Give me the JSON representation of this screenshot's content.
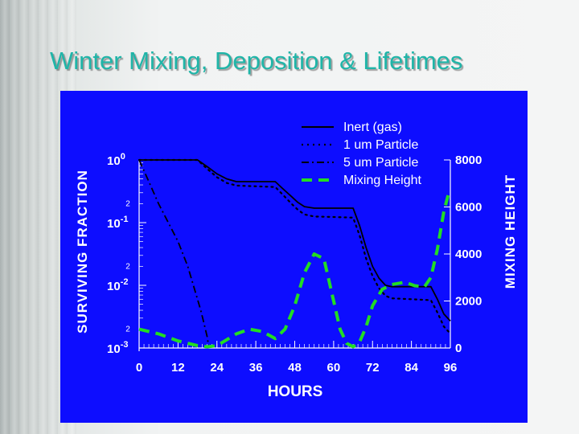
{
  "slide": {
    "title": "Winter Mixing, Deposition & Lifetimes"
  },
  "chart_data": {
    "type": "line",
    "xlabel": "HOURS",
    "ylabel_left": "SURVIVING FRACTION",
    "ylabel_right": "MIXING HEIGHT",
    "xlim": [
      0,
      96
    ],
    "xticks": [
      "0",
      "12",
      "24",
      "36",
      "48",
      "60",
      "72",
      "84",
      "96"
    ],
    "y_left": {
      "scale": "log",
      "lim": [
        0.001,
        1
      ],
      "decades": [
        {
          "base": "10",
          "exp": "0"
        },
        {
          "base": "10",
          "exp": "-1"
        },
        {
          "base": "10",
          "exp": "-2"
        },
        {
          "base": "10",
          "exp": "-3"
        }
      ],
      "minor_label": "2"
    },
    "y_right": {
      "lim": [
        0,
        8000
      ],
      "ticks": [
        "8000",
        "6000",
        "4000",
        "2000",
        "0"
      ]
    },
    "legend_position": "top-center",
    "colors": {
      "panel": "#0d0dff",
      "text": "#ffffff",
      "lines": "#000000",
      "mixing": "#22dd22"
    },
    "series": [
      {
        "name": "Inert (gas)",
        "axis": "left",
        "style": "solid",
        "x": [
          0,
          18,
          21,
          24,
          27,
          30,
          36,
          42,
          44,
          47,
          49,
          51,
          54,
          60,
          66,
          68,
          70,
          72,
          74,
          76,
          78,
          84,
          90,
          92,
          94,
          96
        ],
        "y": [
          1,
          1,
          0.78,
          0.6,
          0.5,
          0.45,
          0.45,
          0.45,
          0.36,
          0.26,
          0.21,
          0.18,
          0.17,
          0.17,
          0.17,
          0.09,
          0.04,
          0.02,
          0.013,
          0.01,
          0.0095,
          0.0095,
          0.0095,
          0.006,
          0.0035,
          0.0027
        ]
      },
      {
        "name": "1 um Particle",
        "axis": "left",
        "style": "dotted",
        "x": [
          0,
          18,
          21,
          24,
          27,
          30,
          36,
          42,
          44,
          47,
          49,
          51,
          54,
          60,
          66,
          68,
          70,
          72,
          74,
          76,
          78,
          84,
          90,
          92,
          94,
          96
        ],
        "y": [
          1,
          1,
          0.72,
          0.53,
          0.43,
          0.39,
          0.38,
          0.37,
          0.29,
          0.2,
          0.16,
          0.135,
          0.125,
          0.123,
          0.12,
          0.063,
          0.027,
          0.014,
          0.009,
          0.0068,
          0.0062,
          0.006,
          0.0058,
          0.0037,
          0.0022,
          0.0017
        ]
      },
      {
        "name": "5 um Particle",
        "axis": "left",
        "style": "dashdot",
        "x": [
          0,
          3,
          6,
          9,
          12,
          15,
          18,
          19,
          20,
          21,
          21.5
        ],
        "y": [
          1,
          0.45,
          0.2,
          0.1,
          0.05,
          0.02,
          0.006,
          0.004,
          0.0025,
          0.0015,
          0.001
        ]
      },
      {
        "name": "Mixing Height",
        "axis": "right",
        "style": "dashed",
        "x": [
          0,
          6,
          12,
          18,
          21,
          24,
          27,
          30,
          34,
          38,
          42,
          45,
          48,
          51,
          54,
          57,
          60,
          62,
          64,
          66,
          68,
          70,
          72,
          75,
          78,
          82,
          85,
          88,
          90,
          92,
          94,
          95.5
        ],
        "y": [
          800,
          600,
          300,
          100,
          50,
          100,
          350,
          600,
          800,
          700,
          400,
          800,
          1800,
          3200,
          4000,
          3800,
          2000,
          800,
          200,
          50,
          250,
          900,
          1800,
          2500,
          2700,
          2800,
          2650,
          2600,
          3000,
          4200,
          5800,
          6600
        ]
      }
    ]
  }
}
